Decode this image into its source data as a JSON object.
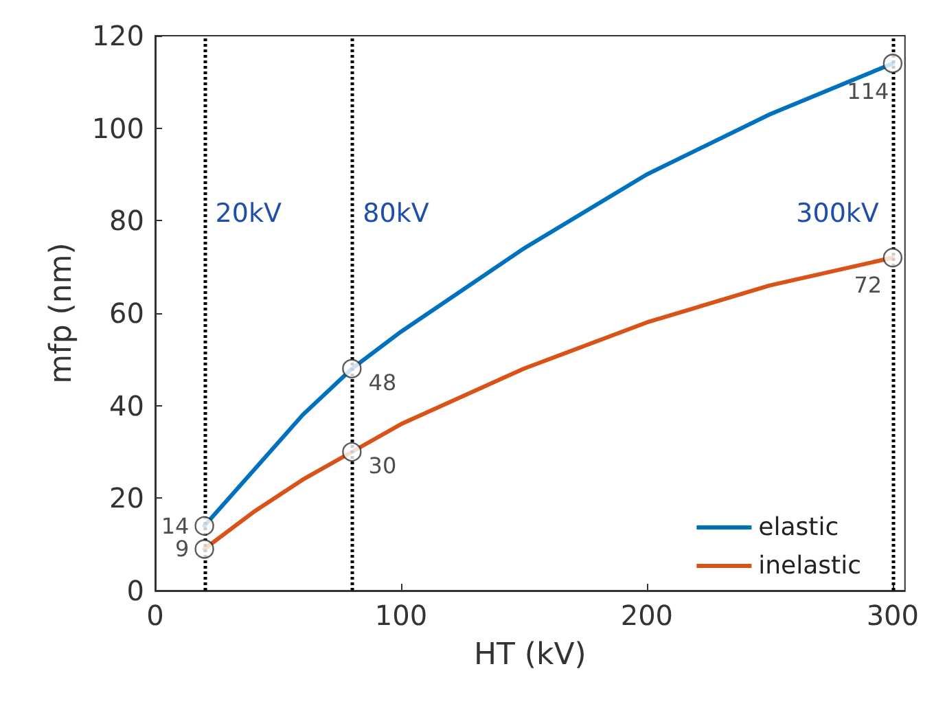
{
  "chart_data": {
    "type": "line",
    "xlabel": "HT (kV)",
    "ylabel": "mfp (nm)",
    "xlim": [
      0,
      305
    ],
    "xticks": [
      0,
      100,
      200,
      300
    ],
    "ylim": [
      0,
      120
    ],
    "yticks": [
      0,
      20,
      40,
      60,
      80,
      100,
      120
    ],
    "grid": false,
    "legend": "bottom right",
    "series": [
      {
        "name": "elastic",
        "color": "#0072bd",
        "x": [
          20,
          40,
          60,
          80,
          100,
          150,
          200,
          250,
          300
        ],
        "values": [
          14,
          26,
          38,
          48,
          56,
          74,
          90,
          103,
          114
        ]
      },
      {
        "name": "inelastic",
        "color": "#d95319",
        "x": [
          20,
          40,
          60,
          80,
          100,
          150,
          200,
          250,
          300
        ],
        "values": [
          9,
          17,
          24,
          30,
          36,
          48,
          58,
          66,
          72
        ]
      },
      {
        "type": "scatter",
        "marker": "circle",
        "color": "#ffffff",
        "x": [
          20,
          80,
          300
        ],
        "values": [
          14,
          48,
          114
        ],
        "data_labels": true
      },
      {
        "type": "scatter",
        "marker": "circle",
        "color": "#ffffff",
        "x": [
          20,
          80,
          300
        ],
        "values": [
          9,
          30,
          72
        ],
        "data_labels": true
      }
    ],
    "ref_lines": [
      {
        "axis": "x",
        "value": 20,
        "label": "20kV",
        "color": "#000000",
        "line_style": "dotted"
      },
      {
        "axis": "x",
        "value": 80,
        "label": "80kV",
        "color": "#000000",
        "line_style": "dotted"
      },
      {
        "axis": "x",
        "value": 300,
        "label": "300kV",
        "color": "#000000",
        "line_style": "dotted"
      }
    ]
  }
}
